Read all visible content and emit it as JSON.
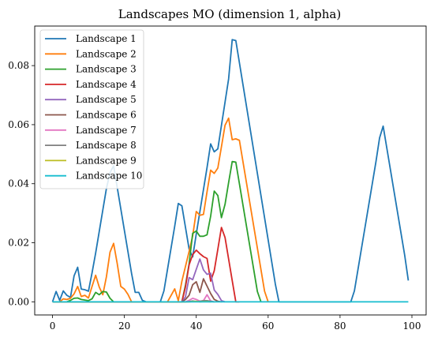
{
  "chart_data": {
    "type": "line",
    "title": "Landscapes MO (dimension 1, alpha)",
    "xlabel": "",
    "ylabel": "",
    "xlim": [
      -4.95,
      103.95
    ],
    "ylim": [
      -0.00445,
      0.0934
    ],
    "xticks": [
      0,
      20,
      40,
      60,
      80,
      100
    ],
    "yticks": [
      0.0,
      0.02,
      0.04,
      0.06,
      0.08
    ],
    "xtick_labels": [
      "0",
      "20",
      "40",
      "60",
      "80",
      "100"
    ],
    "ytick_labels": [
      "0.00",
      "0.02",
      "0.04",
      "0.06",
      "0.08"
    ],
    "grid": false,
    "legend_position": "top-left",
    "series": [
      {
        "name": "Landscape 1",
        "color": "#1f77b4",
        "points": [
          [
            0,
            0
          ],
          [
            1,
            0.0035
          ],
          [
            2,
            0.0005
          ],
          [
            3,
            0.0037
          ],
          [
            4,
            0.0022
          ],
          [
            5,
            0.0015
          ],
          [
            6,
            0.0088
          ],
          [
            7,
            0.0117
          ],
          [
            8,
            0.0043
          ],
          [
            9,
            0.0041
          ],
          [
            10,
            0.0036
          ],
          [
            11,
            0.0098
          ],
          [
            12,
            0.0165
          ],
          [
            13,
            0.0238
          ],
          [
            14,
            0.0311
          ],
          [
            15,
            0.0384
          ],
          [
            16,
            0.0437
          ],
          [
            17,
            0.0461
          ],
          [
            18,
            0.0388
          ],
          [
            19,
            0.0315
          ],
          [
            20,
            0.0242
          ],
          [
            21,
            0.0169
          ],
          [
            22,
            0.0096
          ],
          [
            23,
            0.0032
          ],
          [
            24,
            0.0032
          ],
          [
            25,
            0.0005
          ],
          [
            26,
            0
          ],
          [
            30,
            0
          ],
          [
            31,
            0.0037
          ],
          [
            32,
            0.011
          ],
          [
            33,
            0.0183
          ],
          [
            34,
            0.0256
          ],
          [
            35,
            0.0333
          ],
          [
            36,
            0.0325
          ],
          [
            37,
            0.0252
          ],
          [
            38,
            0.0179
          ],
          [
            39,
            0.0152
          ],
          [
            40,
            0.023
          ],
          [
            41,
            0.0305
          ],
          [
            42,
            0.038
          ],
          [
            43,
            0.0455
          ],
          [
            44,
            0.0535
          ],
          [
            45,
            0.0508
          ],
          [
            46,
            0.0518
          ],
          [
            47,
            0.0597
          ],
          [
            48,
            0.0676
          ],
          [
            49,
            0.0755
          ],
          [
            50,
            0.0888
          ],
          [
            51,
            0.0885
          ],
          [
            52,
            0.081
          ],
          [
            53,
            0.0735
          ],
          [
            54,
            0.066
          ],
          [
            55,
            0.0585
          ],
          [
            56,
            0.051
          ],
          [
            57,
            0.0435
          ],
          [
            58,
            0.036
          ],
          [
            59,
            0.0285
          ],
          [
            60,
            0.021
          ],
          [
            61,
            0.0135
          ],
          [
            62,
            0.006
          ],
          [
            63,
            0
          ],
          [
            83,
            0
          ],
          [
            84,
            0.0037
          ],
          [
            85,
            0.011
          ],
          [
            86,
            0.0183
          ],
          [
            87,
            0.0256
          ],
          [
            88,
            0.0329
          ],
          [
            89,
            0.0402
          ],
          [
            90,
            0.0475
          ],
          [
            91,
            0.0555
          ],
          [
            92,
            0.0595
          ],
          [
            93,
            0.0522
          ],
          [
            94,
            0.0449
          ],
          [
            95,
            0.0376
          ],
          [
            96,
            0.0303
          ],
          [
            97,
            0.023
          ],
          [
            98,
            0.0157
          ],
          [
            99,
            0.0072
          ]
        ]
      },
      {
        "name": "Landscape 2",
        "color": "#ff7f0e",
        "points": [
          [
            0,
            0
          ],
          [
            2,
            0
          ],
          [
            3,
            0.001
          ],
          [
            4,
            0.0008
          ],
          [
            5,
            0.0012
          ],
          [
            6,
            0.0027
          ],
          [
            7,
            0.0052
          ],
          [
            8,
            0.0018
          ],
          [
            9,
            0.0022
          ],
          [
            10,
            0.0013
          ],
          [
            11,
            0.0052
          ],
          [
            12,
            0.009
          ],
          [
            13,
            0.005
          ],
          [
            14,
            0.0024
          ],
          [
            15,
            0.0085
          ],
          [
            16,
            0.0168
          ],
          [
            17,
            0.0198
          ],
          [
            18,
            0.013
          ],
          [
            19,
            0.0052
          ],
          [
            20,
            0.0043
          ],
          [
            21,
            0.0025
          ],
          [
            22,
            0
          ],
          [
            32,
            0
          ],
          [
            33,
            0.0022
          ],
          [
            34,
            0.0044
          ],
          [
            35,
            0.0004
          ],
          [
            36,
            0.007
          ],
          [
            37,
            0.012
          ],
          [
            38,
            0.017
          ],
          [
            39,
            0.0223
          ],
          [
            40,
            0.0306
          ],
          [
            41,
            0.0293
          ],
          [
            42,
            0.0296
          ],
          [
            43,
            0.0373
          ],
          [
            44,
            0.0446
          ],
          [
            45,
            0.0435
          ],
          [
            46,
            0.0453
          ],
          [
            47,
            0.0525
          ],
          [
            48,
            0.0598
          ],
          [
            49,
            0.0622
          ],
          [
            50,
            0.0549
          ],
          [
            51,
            0.0552
          ],
          [
            52,
            0.0547
          ],
          [
            53,
            0.0474
          ],
          [
            54,
            0.0401
          ],
          [
            55,
            0.0328
          ],
          [
            56,
            0.0255
          ],
          [
            57,
            0.0182
          ],
          [
            58,
            0.0109
          ],
          [
            59,
            0.0036
          ],
          [
            60,
            0
          ]
        ]
      },
      {
        "name": "Landscape 3",
        "color": "#2ca02c",
        "points": [
          [
            0,
            0
          ],
          [
            4,
            0
          ],
          [
            5,
            0.0005
          ],
          [
            6,
            0.0012
          ],
          [
            7,
            0.0013
          ],
          [
            8,
            0.0008
          ],
          [
            9,
            0.0006
          ],
          [
            10,
            0.0004
          ],
          [
            11,
            0.001
          ],
          [
            12,
            0.0032
          ],
          [
            13,
            0.0024
          ],
          [
            14,
            0.0035
          ],
          [
            15,
            0.0033
          ],
          [
            16,
            0.0012
          ],
          [
            17,
            0
          ],
          [
            36,
            0
          ],
          [
            37,
            0.0057
          ],
          [
            38,
            0.0128
          ],
          [
            39,
            0.0232
          ],
          [
            40,
            0.024
          ],
          [
            41,
            0.0222
          ],
          [
            42,
            0.0222
          ],
          [
            43,
            0.0227
          ],
          [
            44,
            0.029
          ],
          [
            45,
            0.0375
          ],
          [
            46,
            0.036
          ],
          [
            47,
            0.0285
          ],
          [
            48,
            0.033
          ],
          [
            49,
            0.0404
          ],
          [
            50,
            0.0475
          ],
          [
            51,
            0.0473
          ],
          [
            52,
            0.04
          ],
          [
            53,
            0.0327
          ],
          [
            54,
            0.0254
          ],
          [
            55,
            0.0181
          ],
          [
            56,
            0.0108
          ],
          [
            57,
            0.0035
          ],
          [
            58,
            0
          ]
        ]
      },
      {
        "name": "Landscape 4",
        "color": "#d62728",
        "points": [
          [
            0,
            0
          ],
          [
            36,
            0
          ],
          [
            37,
            0.005
          ],
          [
            38,
            0.0125
          ],
          [
            39,
            0.016
          ],
          [
            40,
            0.0175
          ],
          [
            41,
            0.0163
          ],
          [
            42,
            0.0153
          ],
          [
            43,
            0.0147
          ],
          [
            44,
            0.007
          ],
          [
            45,
            0.0105
          ],
          [
            46,
            0.0178
          ],
          [
            47,
            0.0252
          ],
          [
            48,
            0.0218
          ],
          [
            49,
            0.0145
          ],
          [
            50,
            0.0072
          ],
          [
            51,
            0
          ],
          [
            52,
            0
          ]
        ]
      },
      {
        "name": "Landscape 5",
        "color": "#9467bd",
        "points": [
          [
            0,
            0
          ],
          [
            36,
            0
          ],
          [
            37,
            0.0017
          ],
          [
            38,
            0.0082
          ],
          [
            39,
            0.0075
          ],
          [
            40,
            0.011
          ],
          [
            41,
            0.0145
          ],
          [
            42,
            0.0108
          ],
          [
            43,
            0.0093
          ],
          [
            44,
            0.0097
          ],
          [
            45,
            0.004
          ],
          [
            46,
            0.0025
          ],
          [
            47,
            0.0004
          ],
          [
            48,
            0
          ]
        ]
      },
      {
        "name": "Landscape 6",
        "color": "#8c564b",
        "points": [
          [
            0,
            0
          ],
          [
            36,
            0
          ],
          [
            37,
            0.0008
          ],
          [
            38,
            0.0022
          ],
          [
            39,
            0.0058
          ],
          [
            40,
            0.0068
          ],
          [
            41,
            0.0032
          ],
          [
            42,
            0.0078
          ],
          [
            43,
            0.0053
          ],
          [
            44,
            0.0028
          ],
          [
            45,
            0.0008
          ],
          [
            46,
            0.0002
          ],
          [
            47,
            0
          ]
        ]
      },
      {
        "name": "Landscape 7",
        "color": "#e377c2",
        "points": [
          [
            0,
            0
          ],
          [
            37,
            0
          ],
          [
            38,
            0.0005
          ],
          [
            39,
            0.0012
          ],
          [
            40,
            0.0008
          ],
          [
            41,
            0.0002
          ],
          [
            42,
            0.0004
          ],
          [
            43,
            0.0024
          ],
          [
            44,
            0.0003
          ],
          [
            45,
            0
          ]
        ]
      },
      {
        "name": "Landscape 8",
        "color": "#7f7f7f",
        "points": [
          [
            0,
            0
          ],
          [
            37,
            0
          ],
          [
            38,
            0.0001
          ],
          [
            39,
            0.0003
          ],
          [
            40,
            0.0001
          ],
          [
            41,
            0.0002
          ],
          [
            42,
            0.0004
          ],
          [
            43,
            0.0004
          ],
          [
            44,
            0.0002
          ],
          [
            45,
            0
          ]
        ]
      },
      {
        "name": "Landscape 9",
        "color": "#bcbd22",
        "points": [
          [
            0,
            0
          ],
          [
            38,
            0
          ],
          [
            39,
            0.0001
          ],
          [
            40,
            0.0002
          ],
          [
            41,
            0
          ],
          [
            42,
            0.0001
          ],
          [
            43,
            0.0001
          ],
          [
            44,
            0
          ]
        ]
      },
      {
        "name": "Landscape 10",
        "color": "#17becf",
        "points": [
          [
            0,
            0
          ],
          [
            99,
            0
          ]
        ]
      }
    ]
  }
}
